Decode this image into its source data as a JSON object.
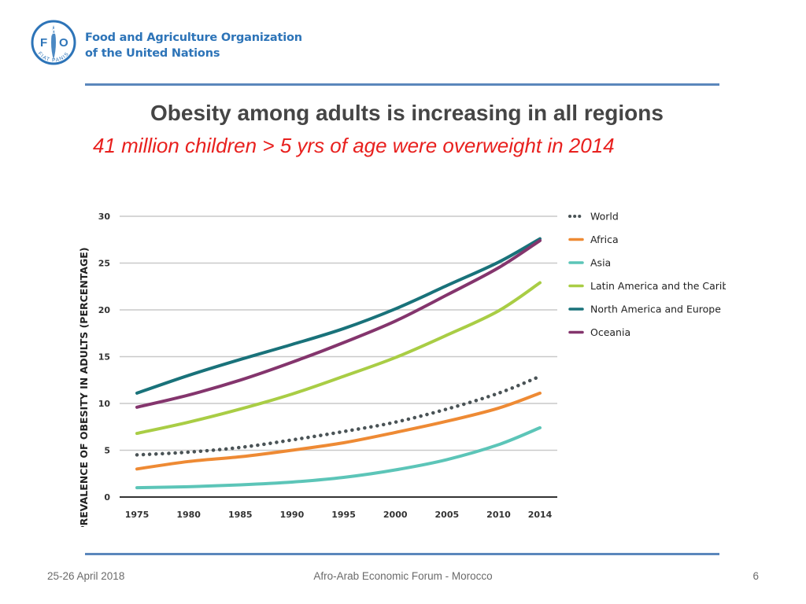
{
  "header": {
    "org_name_line1": "Food and Agriculture Organization",
    "org_name_line2": "of the United Nations",
    "logo_letters": [
      "F",
      "A",
      "O"
    ],
    "logo_motto": "FIAT PANIS"
  },
  "slide": {
    "title": "Obesity among adults is increasing in all regions",
    "subtitle": "41 million children > 5 yrs of age were overweight in 2014"
  },
  "footer": {
    "date": "25-26 April 2018",
    "event": "Afro-Arab Economic Forum - Morocco",
    "page": "6"
  },
  "colors": {
    "brand_blue": "#2d74b8",
    "rule": "#5b87bc",
    "subtitle_red": "#e8201e"
  },
  "chart_data": {
    "type": "line",
    "title": "",
    "xlabel": "",
    "ylabel": "PREVALENCE OF OBESITY IN ADULTS (PERCENTAGE)",
    "x": [
      1975,
      1980,
      1985,
      1990,
      1995,
      2000,
      2005,
      2010,
      2014
    ],
    "x_tick_labels": [
      "1975",
      "1980",
      "1985",
      "1990",
      "1995",
      "2000",
      "2005",
      "2010",
      "2014"
    ],
    "y_ticks": [
      0,
      5,
      10,
      15,
      20,
      25,
      30
    ],
    "ylim": [
      0,
      30
    ],
    "grid": true,
    "legend_position": "right",
    "series": [
      {
        "name": "World",
        "style": "dotted",
        "color": "#4a5356",
        "values": [
          4.5,
          4.8,
          5.3,
          6.1,
          7.0,
          8.0,
          9.4,
          11.1,
          12.9
        ]
      },
      {
        "name": "Africa",
        "style": "solid",
        "color": "#ee8a34",
        "values": [
          3.0,
          3.8,
          4.3,
          5.0,
          5.8,
          6.9,
          8.1,
          9.5,
          11.1
        ]
      },
      {
        "name": "Asia",
        "style": "solid",
        "color": "#5cc5b8",
        "values": [
          1.0,
          1.1,
          1.3,
          1.6,
          2.1,
          2.9,
          4.0,
          5.6,
          7.4
        ]
      },
      {
        "name": "Latin America and the Caribbean",
        "style": "solid",
        "color": "#a9cd45",
        "values": [
          6.8,
          8.0,
          9.4,
          11.0,
          12.9,
          14.9,
          17.3,
          19.9,
          22.9
        ]
      },
      {
        "name": "North America and Europe",
        "style": "solid",
        "color": "#19727a",
        "values": [
          11.1,
          13.0,
          14.7,
          16.3,
          18.0,
          20.1,
          22.6,
          25.1,
          27.6
        ]
      },
      {
        "name": "Oceania",
        "style": "solid",
        "color": "#84356d",
        "values": [
          9.6,
          10.9,
          12.5,
          14.4,
          16.5,
          18.8,
          21.6,
          24.5,
          27.4
        ]
      }
    ]
  }
}
